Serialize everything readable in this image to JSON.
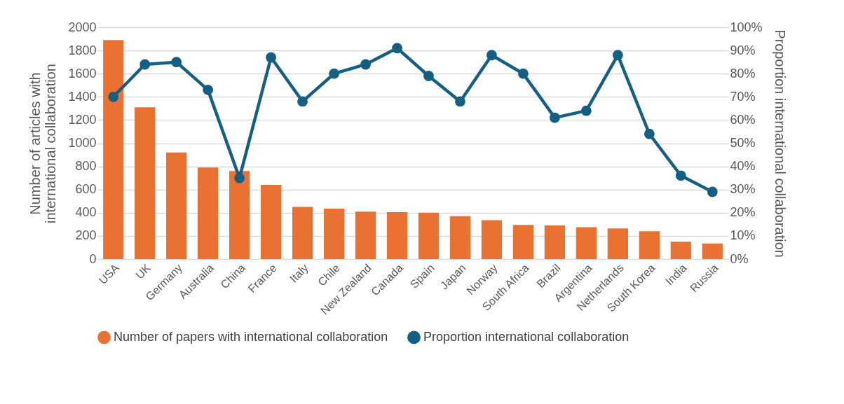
{
  "chart_data": {
    "type": "bar",
    "categories": [
      "USA",
      "UK",
      "Germany",
      "Australia",
      "China",
      "France",
      "Italy",
      "Chile",
      "New Zealand",
      "Canada",
      "Spain",
      "Japan",
      "Norway",
      "South Africa",
      "Brazil",
      "Argentina",
      "Netherlands",
      "South Korea",
      "India",
      "Russia"
    ],
    "series": [
      {
        "name": "Number of papers with international collaboration",
        "color": "#e97132",
        "values": [
          1890,
          1310,
          920,
          790,
          760,
          640,
          450,
          435,
          410,
          405,
          400,
          370,
          335,
          295,
          290,
          275,
          265,
          240,
          150,
          135
        ]
      },
      {
        "name": "Proportion international collaboration",
        "type": "line",
        "axis": "y2",
        "color": "#156082",
        "marker": "circle",
        "values": [
          70,
          84,
          85,
          73,
          35,
          87,
          68,
          80,
          84,
          91,
          79,
          68,
          88,
          80,
          61,
          64,
          88,
          54,
          36,
          29
        ]
      }
    ],
    "ylabel": "Number of articles with international collaboration",
    "y2label": "Proportion international collaboration",
    "ylim": [
      0,
      2000
    ],
    "yticks": [
      0,
      200,
      400,
      600,
      800,
      1000,
      1200,
      1400,
      1600,
      1800,
      2000
    ],
    "y2lim": [
      0,
      100
    ],
    "y2ticks": [
      {
        "value": 0,
        "label": "0%"
      },
      {
        "value": 10,
        "label": "10%"
      },
      {
        "value": 20,
        "label": "20%"
      },
      {
        "value": 30,
        "label": "30%"
      },
      {
        "value": 40,
        "label": "40%"
      },
      {
        "value": 50,
        "label": "50%"
      },
      {
        "value": 60,
        "label": "60%"
      },
      {
        "value": 70,
        "label": "70%"
      },
      {
        "value": 80,
        "label": "80%"
      },
      {
        "value": 90,
        "label": "90%"
      },
      {
        "value": 100,
        "label": "100%"
      }
    ],
    "grid": "y",
    "legend": "bottom"
  }
}
